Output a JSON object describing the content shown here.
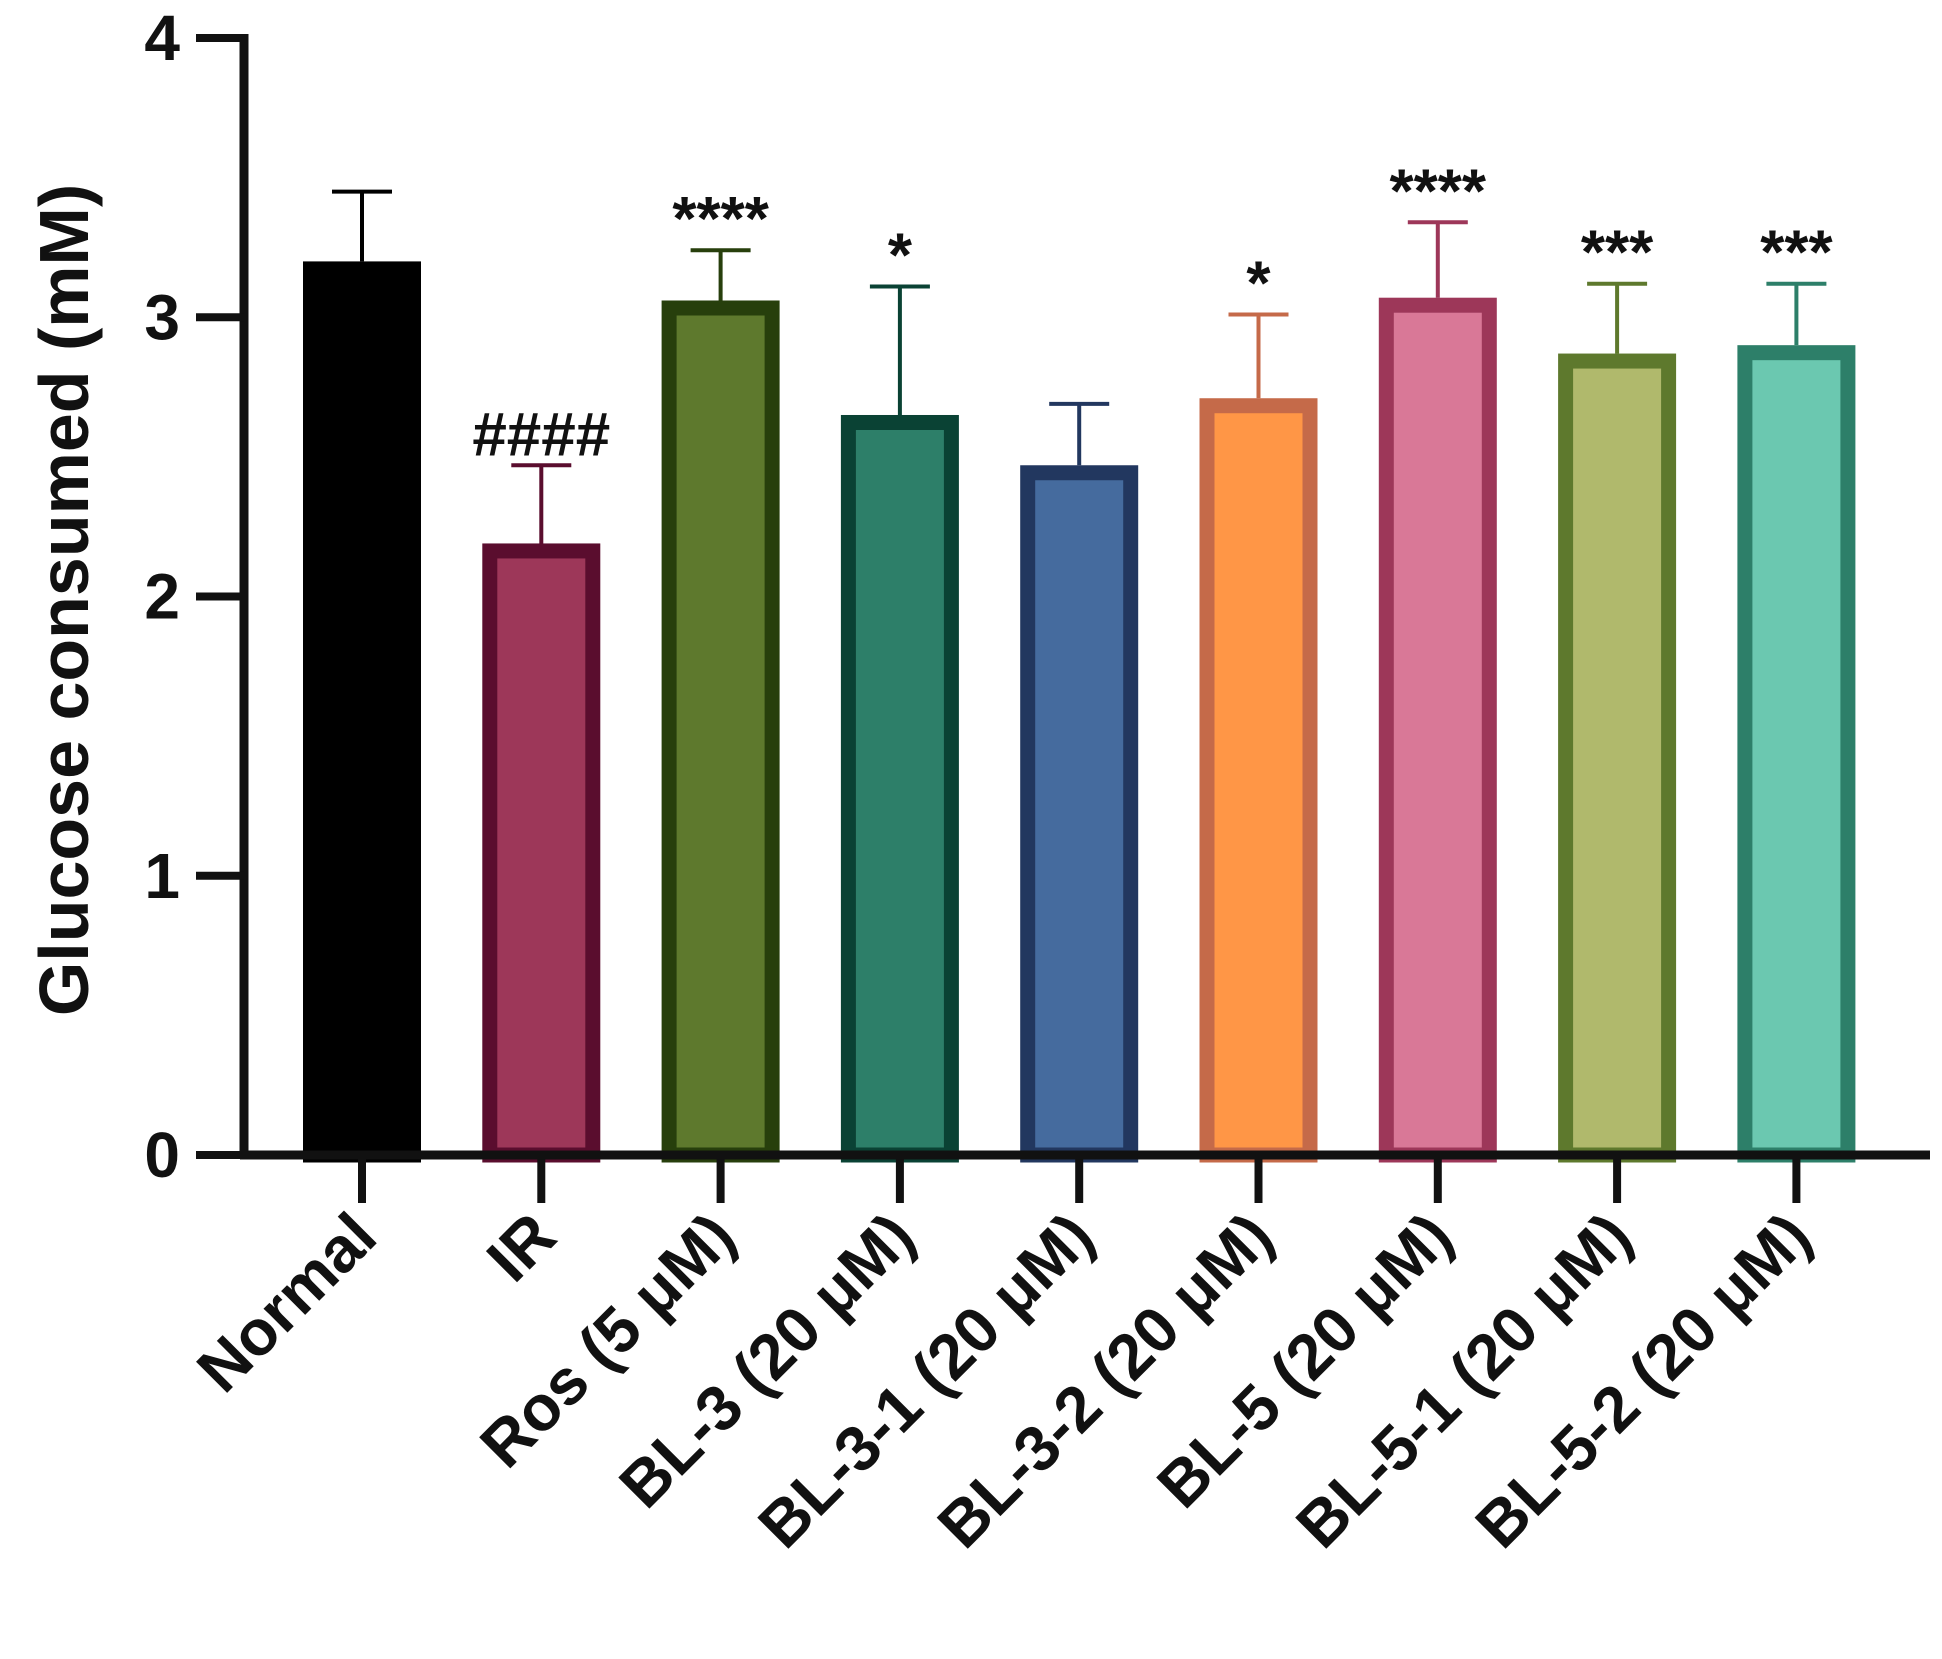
{
  "chart_data": {
    "type": "bar",
    "title": "",
    "xlabel": "",
    "ylabel": "Glucose consumed (mM)",
    "ylim": [
      0,
      4
    ],
    "yticks": [
      0,
      1,
      2,
      3,
      4
    ],
    "grid": false,
    "categories": [
      "Normal",
      "IR",
      "Ros (5 μM)",
      "BL-3 (20 μM)",
      "BL-3-1 (20 μM)",
      "BL-3-2 (20 μM)",
      "BL-5 (20 μM)",
      "BL-5-1 (20 μM)",
      "BL-5-2 (20 μM)"
    ],
    "values": [
      3.2,
      2.19,
      3.06,
      2.65,
      2.47,
      2.71,
      3.07,
      2.87,
      2.9
    ],
    "errors": [
      0.25,
      0.28,
      0.18,
      0.46,
      0.22,
      0.3,
      0.27,
      0.25,
      0.22
    ],
    "annotations": [
      "",
      "####",
      "****",
      "*",
      "",
      "*",
      "****",
      "***",
      "***"
    ],
    "fill_colors": [
      "#000000",
      "#9d3759",
      "#5e792d",
      "#2d7f69",
      "#456b9e",
      "#ff9646",
      "#d97897",
      "#b0b96c",
      "#6bc8b0"
    ],
    "edge_colors": [
      "#000000",
      "#5a0d2e",
      "#273f0c",
      "#0a4234",
      "#22375f",
      "#c56a49",
      "#9d3759",
      "#5e792d",
      "#2d7f69"
    ]
  }
}
